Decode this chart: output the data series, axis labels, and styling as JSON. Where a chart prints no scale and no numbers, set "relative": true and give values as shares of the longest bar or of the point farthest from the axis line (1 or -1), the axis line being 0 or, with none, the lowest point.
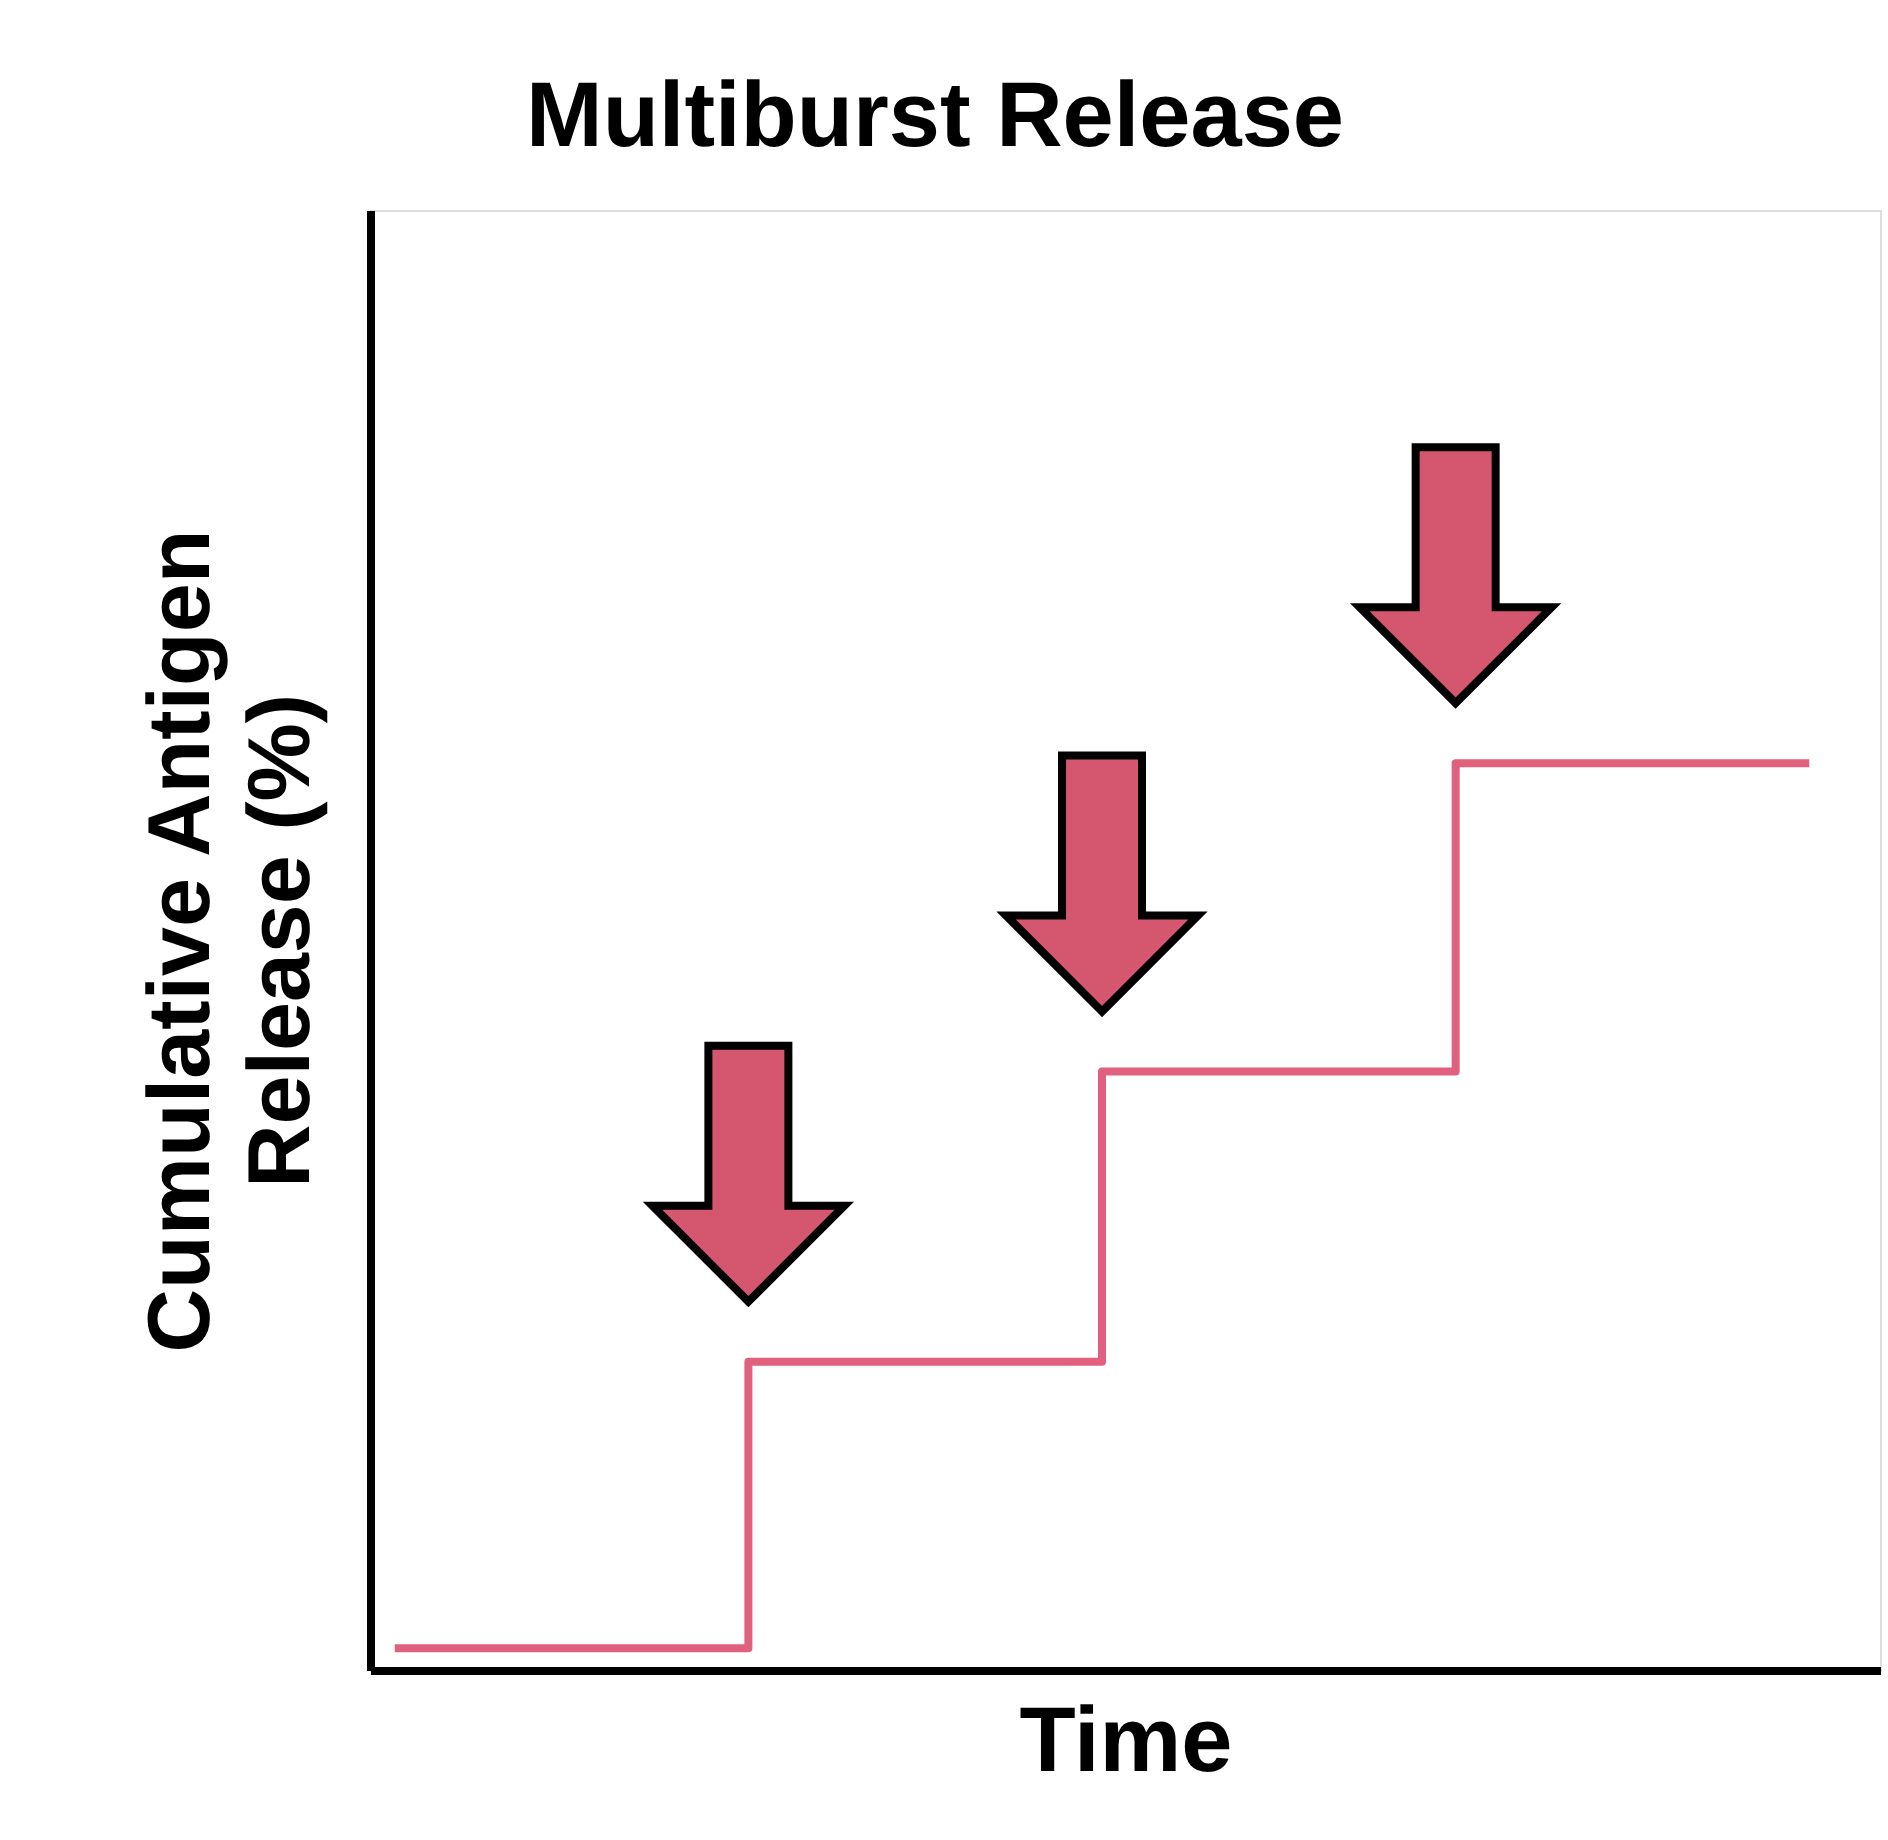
{
  "chart_data": {
    "type": "step",
    "title": "Multiburst Release",
    "xlabel": "Time",
    "ylabel": "Cumulative Antigen\nRelease (%)",
    "relative": true,
    "categories": [
      null,
      null,
      null,
      null,
      null
    ],
    "series": [
      {
        "color": "#e0607e",
        "values": [
          0.024,
          0.34,
          0.66,
          1,
          1
        ]
      }
    ],
    "grid": false,
    "legend": false,
    "tick_labels": false
  }
}
